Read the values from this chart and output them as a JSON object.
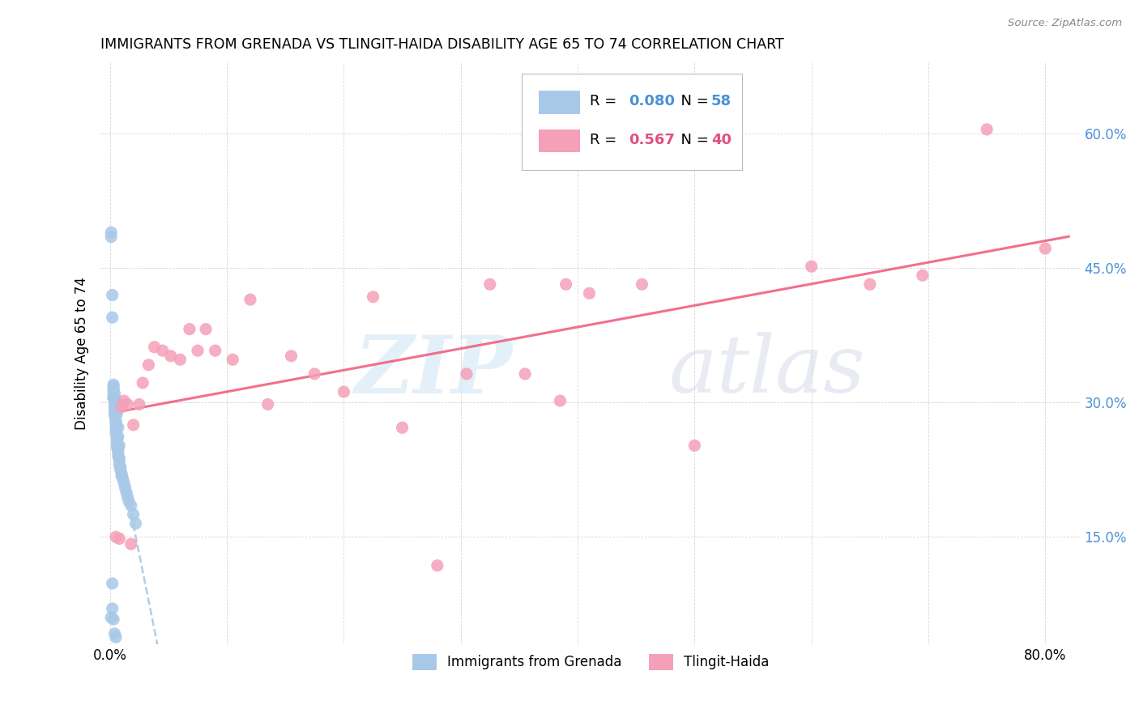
{
  "title": "IMMIGRANTS FROM GRENADA VS TLINGIT-HAIDA DISABILITY AGE 65 TO 74 CORRELATION CHART",
  "source": "Source: ZipAtlas.com",
  "ylabel": "Disability Age 65 to 74",
  "x_tick_positions": [
    0.0,
    0.1,
    0.2,
    0.3,
    0.4,
    0.5,
    0.6,
    0.7,
    0.8
  ],
  "x_tick_labels": [
    "0.0%",
    "",
    "",
    "",
    "",
    "",
    "",
    "",
    "80.0%"
  ],
  "y_tick_positions": [
    0.15,
    0.3,
    0.45,
    0.6
  ],
  "y_tick_labels": [
    "15.0%",
    "30.0%",
    "45.0%",
    "60.0%"
  ],
  "xlim": [
    -0.008,
    0.83
  ],
  "ylim": [
    0.03,
    0.68
  ],
  "grenada_color": "#a8c8e8",
  "tlingit_color": "#f4a0b8",
  "grenada_line_color": "#a8c8e8",
  "tlingit_line_color": "#f06080",
  "grenada_R": 0.08,
  "grenada_N": 58,
  "tlingit_R": 0.567,
  "tlingit_N": 40,
  "text_blue": "#4a90d9",
  "text_pink": "#e05080",
  "grenada_x": [
    0.001,
    0.001,
    0.002,
    0.002,
    0.003,
    0.003,
    0.003,
    0.003,
    0.003,
    0.003,
    0.004,
    0.004,
    0.004,
    0.004,
    0.005,
    0.005,
    0.005,
    0.005,
    0.005,
    0.006,
    0.006,
    0.006,
    0.006,
    0.007,
    0.007,
    0.007,
    0.008,
    0.008,
    0.008,
    0.009,
    0.009,
    0.01,
    0.01,
    0.011,
    0.012,
    0.013,
    0.014,
    0.015,
    0.016,
    0.018,
    0.02,
    0.022,
    0.003,
    0.004,
    0.004,
    0.005,
    0.005,
    0.006,
    0.006,
    0.007,
    0.007,
    0.008,
    0.002,
    0.002,
    0.003,
    0.004,
    0.005,
    0.001
  ],
  "grenada_y": [
    0.49,
    0.485,
    0.42,
    0.395,
    0.32,
    0.318,
    0.315,
    0.312,
    0.308,
    0.305,
    0.3,
    0.295,
    0.29,
    0.285,
    0.28,
    0.278,
    0.275,
    0.27,
    0.265,
    0.262,
    0.258,
    0.254,
    0.25,
    0.248,
    0.244,
    0.24,
    0.238,
    0.235,
    0.23,
    0.228,
    0.225,
    0.22,
    0.218,
    0.215,
    0.21,
    0.205,
    0.2,
    0.195,
    0.19,
    0.185,
    0.175,
    0.165,
    0.305,
    0.31,
    0.298,
    0.288,
    0.292,
    0.3,
    0.288,
    0.272,
    0.262,
    0.252,
    0.098,
    0.07,
    0.058,
    0.042,
    0.038,
    0.06
  ],
  "tlingit_x": [
    0.005,
    0.008,
    0.01,
    0.012,
    0.015,
    0.018,
    0.02,
    0.025,
    0.028,
    0.033,
    0.038,
    0.045,
    0.052,
    0.06,
    0.068,
    0.075,
    0.082,
    0.09,
    0.105,
    0.12,
    0.135,
    0.155,
    0.175,
    0.2,
    0.225,
    0.25,
    0.28,
    0.305,
    0.325,
    0.355,
    0.385,
    0.41,
    0.455,
    0.5,
    0.39,
    0.6,
    0.65,
    0.695,
    0.75,
    0.8
  ],
  "tlingit_y": [
    0.15,
    0.148,
    0.295,
    0.302,
    0.298,
    0.142,
    0.275,
    0.298,
    0.322,
    0.342,
    0.362,
    0.358,
    0.352,
    0.348,
    0.382,
    0.358,
    0.382,
    0.358,
    0.348,
    0.415,
    0.298,
    0.352,
    0.332,
    0.312,
    0.418,
    0.272,
    0.118,
    0.332,
    0.432,
    0.332,
    0.302,
    0.422,
    0.432,
    0.252,
    0.432,
    0.452,
    0.432,
    0.442,
    0.605,
    0.472
  ]
}
